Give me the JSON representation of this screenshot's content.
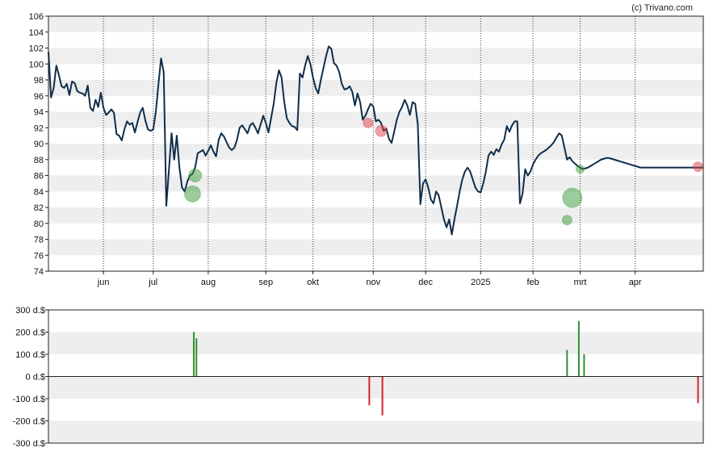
{
  "credit": "(c) Trivano.com",
  "chart_data": [
    {
      "type": "line",
      "name": "price-chart",
      "ylim": [
        74,
        106
      ],
      "y_ticks": [
        74,
        76,
        78,
        80,
        82,
        84,
        86,
        88,
        90,
        92,
        94,
        96,
        98,
        100,
        102,
        104,
        106
      ],
      "x_range": [
        0,
        250
      ],
      "x_ticks": [
        {
          "label": "jun",
          "x": 21
        },
        {
          "label": "jul",
          "x": 40
        },
        {
          "label": "aug",
          "x": 61
        },
        {
          "label": "sep",
          "x": 83
        },
        {
          "label": "okt",
          "x": 101
        },
        {
          "label": "nov",
          "x": 124
        },
        {
          "label": "dec",
          "x": 144
        },
        {
          "label": "2025",
          "x": 165
        },
        {
          "label": "feb",
          "x": 185
        },
        {
          "label": "mrt",
          "x": 203
        },
        {
          "label": "apr",
          "x": 224
        }
      ],
      "band_colors": [
        "#ffffff",
        "#eeeeee"
      ],
      "line_color": "#0f2d4a",
      "series_x": [
        0,
        1,
        2,
        3,
        4,
        5,
        6,
        7,
        8,
        9,
        10,
        11,
        12,
        13,
        14,
        15,
        16,
        17,
        18,
        19,
        20,
        21,
        22,
        23,
        24,
        25,
        26,
        27,
        28,
        29,
        30,
        31,
        32,
        33,
        34,
        35,
        36,
        37,
        38,
        39,
        40,
        41,
        42,
        43,
        44,
        45,
        46,
        47,
        48,
        49,
        50,
        51,
        52,
        53,
        54,
        55,
        56,
        57,
        58,
        59,
        60,
        61,
        62,
        63,
        64,
        65,
        66,
        67,
        68,
        69,
        70,
        71,
        72,
        73,
        74,
        75,
        76,
        77,
        78,
        79,
        80,
        81,
        82,
        83,
        84,
        85,
        86,
        87,
        88,
        89,
        90,
        91,
        92,
        93,
        94,
        95,
        96,
        97,
        98,
        99,
        100,
        101,
        102,
        103,
        104,
        105,
        106,
        107,
        108,
        109,
        110,
        111,
        112,
        113,
        114,
        115,
        116,
        117,
        118,
        119,
        120,
        121,
        122,
        123,
        124,
        125,
        126,
        127,
        128,
        129,
        130,
        131,
        132,
        133,
        134,
        135,
        136,
        137,
        138,
        139,
        140,
        141,
        142,
        143,
        144,
        145,
        146,
        147,
        148,
        149,
        150,
        151,
        152,
        153,
        154,
        155,
        156,
        157,
        158,
        159,
        160,
        161,
        162,
        163,
        164,
        165,
        166,
        167,
        168,
        169,
        170,
        171,
        172,
        173,
        174,
        175,
        176,
        177,
        178,
        179,
        180,
        181,
        182,
        183,
        184,
        185,
        186,
        187,
        188,
        189,
        190,
        191,
        192,
        193,
        194,
        195,
        196,
        197,
        198,
        199,
        200,
        201,
        202,
        203,
        204,
        205,
        206,
        207,
        208,
        209,
        210,
        211,
        212,
        213,
        214,
        215,
        216,
        217,
        218,
        219,
        220,
        221,
        222,
        223,
        224,
        225,
        226,
        227,
        228,
        229,
        230,
        231,
        232,
        233,
        234,
        235,
        236,
        237,
        238,
        239,
        240,
        241,
        242,
        243,
        244,
        245,
        246,
        247,
        248,
        249,
        250
      ],
      "series_y": [
        101.5,
        95.8,
        97.0,
        99.8,
        98.6,
        97.2,
        97.0,
        97.5,
        96.1,
        97.8,
        97.6,
        96.6,
        96.4,
        96.3,
        96.0,
        97.3,
        94.5,
        94.1,
        95.5,
        94.6,
        96.4,
        94.5,
        93.6,
        93.9,
        94.3,
        93.9,
        91.2,
        91.0,
        90.4,
        91.8,
        92.8,
        92.4,
        92.6,
        91.4,
        92.7,
        93.9,
        94.5,
        92.9,
        91.8,
        91.6,
        91.8,
        94.0,
        97.5,
        100.7,
        99.0,
        82.2,
        86.7,
        91.3,
        88.0,
        91.0,
        87.0,
        84.5,
        84.0,
        85.2,
        86.0,
        86.2,
        87.0,
        88.8,
        89.0,
        89.2,
        88.5,
        89.1,
        89.8,
        89.0,
        88.4,
        90.5,
        91.3,
        90.9,
        90.2,
        89.5,
        89.2,
        89.5,
        90.5,
        92.0,
        92.3,
        91.8,
        91.3,
        92.3,
        92.6,
        92.0,
        91.3,
        92.4,
        93.5,
        92.6,
        91.4,
        93.2,
        95.0,
        97.6,
        99.2,
        98.3,
        95.3,
        93.2,
        92.6,
        92.2,
        92.1,
        91.7,
        98.8,
        98.3,
        99.8,
        101.0,
        100.0,
        98.3,
        97.0,
        96.3,
        98.0,
        99.5,
        101.0,
        102.2,
        101.9,
        100.1,
        99.8,
        99.0,
        97.5,
        96.8,
        96.9,
        97.2,
        96.5,
        94.8,
        96.3,
        95.2,
        93.0,
        93.5,
        94.3,
        95.0,
        94.7,
        92.8,
        93.0,
        92.6,
        91.6,
        91.9,
        90.6,
        90.1,
        91.5,
        93.0,
        94.0,
        94.6,
        95.5,
        94.8,
        93.6,
        95.2,
        95.0,
        92.5,
        82.4,
        85.0,
        85.5,
        84.5,
        83.0,
        82.5,
        84.0,
        83.5,
        82.0,
        80.5,
        79.5,
        80.5,
        78.6,
        80.5,
        82.2,
        84.0,
        85.5,
        86.5,
        87.0,
        86.5,
        85.5,
        84.5,
        84.0,
        83.9,
        85.0,
        86.5,
        88.5,
        89.0,
        88.6,
        89.3,
        89.0,
        89.9,
        90.5,
        92.2,
        91.5,
        92.3,
        92.8,
        92.8,
        82.5,
        83.7,
        86.8,
        86.0,
        86.5,
        87.4,
        88.0,
        88.5,
        88.8,
        89.0,
        89.2,
        89.5,
        89.8,
        90.2,
        90.8,
        91.3,
        91.0,
        89.5,
        88.0,
        88.3,
        87.8,
        87.5,
        87.2,
        87.0,
        86.8,
        86.9,
        87.0,
        87.2,
        87.4,
        87.6,
        87.8,
        88.0,
        88.1,
        88.2,
        88.2,
        88.1,
        88.0,
        87.9,
        87.8,
        87.7,
        87.6,
        87.5,
        87.4,
        87.3,
        87.2,
        87.1,
        87.0,
        87.0,
        87.0,
        87.0,
        87.0,
        87.0,
        87.0,
        87.0,
        87.0,
        87.0,
        87.0,
        87.0,
        87.0,
        87.0,
        87.0,
        87.0,
        87.0,
        87.0,
        87.0,
        87.0,
        87.0,
        87.0,
        87.0,
        87.0,
        87.0,
        87.0,
        87.0
      ],
      "markers": [
        {
          "x": 55,
          "y": 83.7,
          "r": 10,
          "color": "#3a9a3a"
        },
        {
          "x": 56,
          "y": 86.0,
          "r": 8,
          "color": "#3a9a3a"
        },
        {
          "x": 122,
          "y": 92.6,
          "r": 6,
          "color": "#e0404a"
        },
        {
          "x": 127,
          "y": 91.6,
          "r": 7,
          "color": "#e0404a"
        },
        {
          "x": 198,
          "y": 80.4,
          "r": 6,
          "color": "#3a9a3a"
        },
        {
          "x": 200,
          "y": 83.2,
          "r": 12,
          "color": "#3a9a3a"
        },
        {
          "x": 203,
          "y": 86.8,
          "r": 5,
          "color": "#3a9a3a"
        },
        {
          "x": 248,
          "y": 87.1,
          "r": 6,
          "color": "#e0404a"
        }
      ]
    },
    {
      "type": "bar",
      "name": "transactions-chart",
      "ylim": [
        -300,
        300
      ],
      "y_ticks": [
        {
          "label": "300 d.$",
          "value": 300
        },
        {
          "label": "200 d.$",
          "value": 200
        },
        {
          "label": "100 d.$",
          "value": 100
        },
        {
          "label": "0 d.$",
          "value": 0
        },
        {
          "label": "-100 d.$",
          "value": -100
        },
        {
          "label": "-200 d.$",
          "value": -200
        },
        {
          "label": "-300 d.$",
          "value": -300
        }
      ],
      "positive_color": "#2f8f2f",
      "negative_color": "#d6202a",
      "bars": [
        {
          "x": 55.5,
          "value": 200
        },
        {
          "x": 56.5,
          "value": 172
        },
        {
          "x": 122.5,
          "value": -130
        },
        {
          "x": 127.5,
          "value": -175
        },
        {
          "x": 198.0,
          "value": 120
        },
        {
          "x": 202.5,
          "value": 250
        },
        {
          "x": 204.5,
          "value": 100
        },
        {
          "x": 248.0,
          "value": -120
        }
      ]
    }
  ]
}
